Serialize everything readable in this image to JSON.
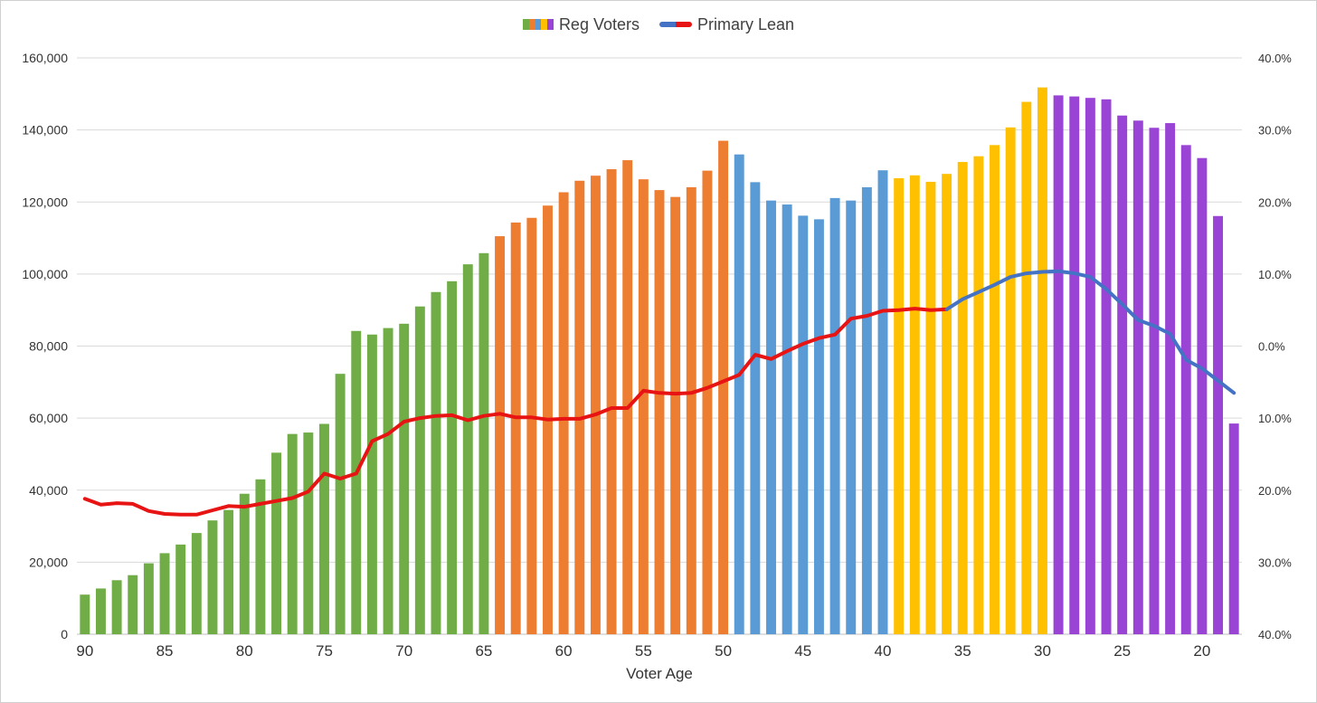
{
  "chart_data": {
    "type": "bar",
    "xlabel": "Voter Age",
    "x_ticks": [
      "90",
      "85",
      "80",
      "75",
      "70",
      "65",
      "60",
      "55",
      "50",
      "45",
      "40",
      "35",
      "30",
      "25",
      "20"
    ],
    "y_left": {
      "ylim": [
        0,
        160000
      ],
      "ticks": [
        "0",
        "20,000",
        "40,000",
        "60,000",
        "80,000",
        "100,000",
        "120,000",
        "140,000",
        "160,000"
      ]
    },
    "y_right": {
      "range": [
        -40,
        40
      ],
      "direction": "top-to-bottom",
      "ticks": [
        "40.0%",
        "30.0%",
        "20.0%",
        "10.0%",
        "0.0%",
        "10.0%",
        "20.0%",
        "30.0%",
        "40.0%"
      ]
    },
    "grid": true,
    "legend_position": "top-center",
    "ages": [
      90,
      89,
      88,
      87,
      86,
      85,
      84,
      83,
      82,
      81,
      80,
      79,
      78,
      77,
      76,
      75,
      74,
      73,
      72,
      71,
      70,
      69,
      68,
      67,
      66,
      65,
      64,
      63,
      62,
      61,
      60,
      59,
      58,
      57,
      56,
      55,
      54,
      53,
      52,
      51,
      50,
      49,
      48,
      47,
      46,
      45,
      44,
      43,
      42,
      41,
      40,
      39,
      38,
      37,
      36,
      35,
      34,
      33,
      32,
      31,
      30,
      29,
      28,
      27,
      26,
      25,
      24,
      23,
      22,
      21,
      20,
      19,
      18
    ],
    "series": [
      {
        "name": "Reg Voters",
        "type": "bar",
        "axis": "left",
        "values": [
          11000,
          12700,
          15000,
          16400,
          19700,
          22500,
          24900,
          28100,
          31600,
          34500,
          39000,
          43000,
          50400,
          55600,
          56000,
          58400,
          72300,
          84200,
          83200,
          85000,
          86200,
          91000,
          95000,
          98000,
          102700,
          105800,
          110500,
          114300,
          115600,
          119000,
          122700,
          125900,
          127300,
          129100,
          131600,
          126300,
          123300,
          121400,
          124100,
          128700,
          137000,
          133200,
          125500,
          120400,
          119300,
          116200,
          115200,
          121100,
          120400,
          124100,
          128800,
          126600,
          127400,
          125600,
          127800,
          131100,
          132700,
          135800,
          140700,
          147800,
          151800,
          149600,
          149300,
          148900,
          148500,
          144000,
          142600,
          140600,
          141900,
          135800,
          132200,
          116100,
          58500
        ],
        "age_band_colors": [
          {
            "from": 90,
            "to": 65,
            "color": "#70AD47"
          },
          {
            "from": 64,
            "to": 50,
            "color": "#ED7D31"
          },
          {
            "from": 49,
            "to": 40,
            "color": "#5B9BD5"
          },
          {
            "from": 39,
            "to": 30,
            "color": "#FFC000"
          },
          {
            "from": 29,
            "to": 18,
            "color": "#9A44D6"
          }
        ]
      },
      {
        "name": "Primary Lean",
        "type": "line",
        "axis": "right",
        "unit": "%",
        "values": [
          -21.2,
          -22,
          -21.8,
          -21.9,
          -22.9,
          -23.3,
          -23.4,
          -23.4,
          -22.8,
          -22.2,
          -22.3,
          -21.9,
          -21.5,
          -21.1,
          -20.2,
          -17.7,
          -18.4,
          -17.7,
          -13.2,
          -12.2,
          -10.5,
          -10,
          -9.7,
          -9.6,
          -10.3,
          -9.7,
          -9.4,
          -9.9,
          -9.9,
          -10.2,
          -10.1,
          -10.1,
          -9.5,
          -8.6,
          -8.6,
          -6.2,
          -6.5,
          -6.6,
          -6.5,
          -5.8,
          -4.9,
          -4,
          -1.2,
          -1.8,
          -0.7,
          0.3,
          1.1,
          1.6,
          3.8,
          4.2,
          4.9,
          5,
          5.2,
          5,
          5.1,
          6.5,
          7.5,
          8.5,
          9.6,
          10.1,
          10.3,
          10.4,
          10.1,
          9.6,
          7.9,
          5.8,
          3.6,
          2.8,
          1.7,
          -1.9,
          -3.1,
          -4.8,
          -6.5
        ],
        "color_segments": [
          {
            "from": 90,
            "to": 36,
            "color": "#E81313"
          },
          {
            "from": 36,
            "to": 18,
            "color": "#4472C4"
          }
        ]
      }
    ]
  },
  "legend": [
    {
      "label": "Reg Voters",
      "swatch_colors": [
        "#70AD47",
        "#ED7D31",
        "#5B9BD5",
        "#FFC000",
        "#9A44D6"
      ]
    },
    {
      "label": "Primary Lean",
      "swatch_colors": [
        "#4472C4",
        "#E81313"
      ]
    }
  ]
}
